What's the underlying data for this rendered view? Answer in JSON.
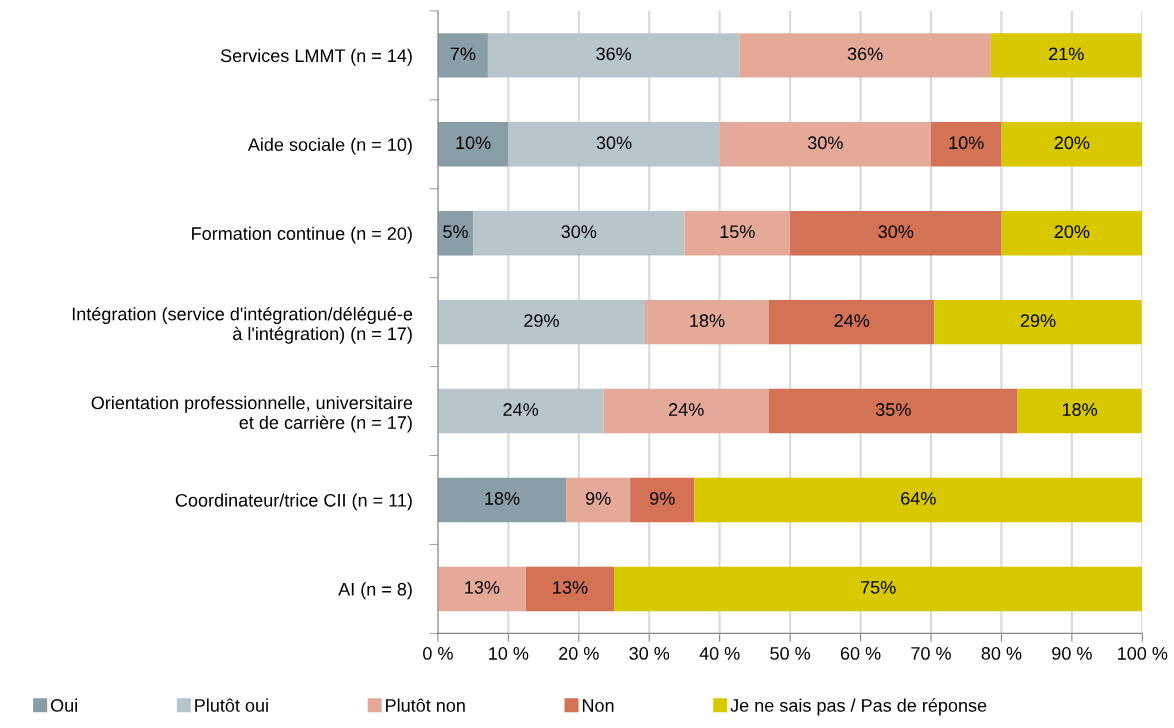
{
  "chart_data": {
    "type": "bar",
    "orientation": "horizontal",
    "stacked": true,
    "categories": [
      "Services LMMT (n = 14)",
      "Aide sociale (n = 10)",
      "Formation continue (n = 20)",
      "Intégration (service d'intégration/délégué-e\nà l'intégration) (n = 17)",
      "Orientation professionnelle, universitaire\net de carrière (n = 17)",
      "Coordinateur/trice CII (n = 11)",
      "AI (n = 8)"
    ],
    "series": [
      {
        "name": "Oui",
        "color": "#8a9ea8",
        "values": [
          7.1,
          10,
          5,
          null,
          null,
          18.2,
          null
        ],
        "value_labels": [
          "7%",
          "10%",
          "5%",
          null,
          null,
          "18%",
          null
        ]
      },
      {
        "name": "Plutôt oui",
        "color": "#b8c6cb",
        "values": [
          35.7,
          30,
          30,
          29.4,
          23.5,
          null,
          null
        ],
        "value_labels": [
          "36%",
          "30%",
          "30%",
          "29%",
          "24%",
          null,
          null
        ]
      },
      {
        "name": "Plutôt non",
        "color": "#e4a998",
        "values": [
          35.7,
          30,
          15,
          17.6,
          23.5,
          9.1,
          12.5
        ],
        "value_labels": [
          "36%",
          "30%",
          "15%",
          "18%",
          "24%",
          "9%",
          "13%"
        ]
      },
      {
        "name": "Non",
        "color": "#d37255",
        "values": [
          null,
          10,
          30,
          23.5,
          35.3,
          9.1,
          12.5
        ],
        "value_labels": [
          null,
          "10%",
          "30%",
          "24%",
          "35%",
          "9%",
          "13%"
        ]
      },
      {
        "name": "Je ne sais pas / Pas de réponse",
        "color": "#d8c800",
        "values": [
          21.4,
          20,
          20,
          29.4,
          17.6,
          63.6,
          75
        ],
        "value_labels": [
          "21%",
          "20%",
          "20%",
          "29%",
          "18%",
          "64%",
          "75%"
        ]
      }
    ],
    "xlim": [
      0,
      100
    ],
    "xticks": [
      {
        "value": 0,
        "label": "0 %"
      },
      {
        "value": 10,
        "label": "10 %"
      },
      {
        "value": 20,
        "label": "20 %"
      },
      {
        "value": 30,
        "label": "30 %"
      },
      {
        "value": 40,
        "label": "40 %"
      },
      {
        "value": 50,
        "label": "50 %"
      },
      {
        "value": 60,
        "label": "60 %"
      },
      {
        "value": 70,
        "label": "70 %"
      },
      {
        "value": 80,
        "label": "80 %"
      },
      {
        "value": 90,
        "label": "90 %"
      },
      {
        "value": 100,
        "label": "100 %"
      }
    ],
    "grid": "x",
    "legend": "bottom"
  }
}
